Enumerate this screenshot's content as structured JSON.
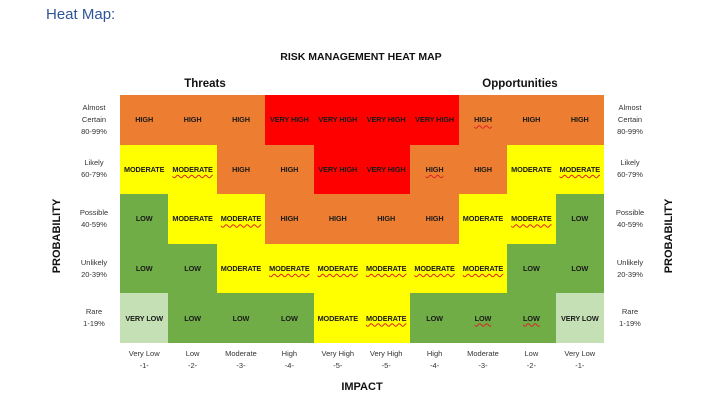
{
  "page": {
    "heading": "Heat Map:"
  },
  "colors": {
    "VERY HIGH": "#ff0000",
    "HIGH": "#ed7d31",
    "MODERATE": "#ffff00",
    "LOW": "#70ad47",
    "VERY LOW": "#c5e0b4"
  },
  "chart_data": {
    "type": "heatmap",
    "title": "RISK MANAGEMENT HEAT MAP",
    "groups": [
      "Threats",
      "Opportunities"
    ],
    "xlabel": "IMPACT",
    "ylabel": "PROBABILITY",
    "x_categories": [
      {
        "name": "Very Low",
        "score": "-1-"
      },
      {
        "name": "Low",
        "score": "-2-"
      },
      {
        "name": "Moderate",
        "score": "-3-"
      },
      {
        "name": "High",
        "score": "-4-"
      },
      {
        "name": "Very High",
        "score": "-5-"
      },
      {
        "name": "Very High",
        "score": "-5-"
      },
      {
        "name": "High",
        "score": "-4-"
      },
      {
        "name": "Moderate",
        "score": "-3-"
      },
      {
        "name": "Low",
        "score": "-2-"
      },
      {
        "name": "Very Low",
        "score": "-1-"
      }
    ],
    "y_categories": [
      {
        "name": "Almost Certain",
        "range": "80-99%"
      },
      {
        "name": "Likely",
        "range": "60-79%"
      },
      {
        "name": "Possible",
        "range": "40-59%"
      },
      {
        "name": "Unlikely",
        "range": "20-39%"
      },
      {
        "name": "Rare",
        "range": "1-19%"
      }
    ],
    "values": [
      [
        "HIGH",
        "HIGH",
        "HIGH",
        "VERY HIGH",
        "VERY HIGH",
        "VERY HIGH",
        "VERY HIGH",
        "HIGH",
        "HIGH",
        "HIGH"
      ],
      [
        "MODERATE",
        "MODERATE",
        "HIGH",
        "HIGH",
        "VERY HIGH",
        "VERY HIGH",
        "HIGH",
        "HIGH",
        "MODERATE",
        "MODERATE"
      ],
      [
        "LOW",
        "MODERATE",
        "MODERATE",
        "HIGH",
        "HIGH",
        "HIGH",
        "HIGH",
        "MODERATE",
        "MODERATE",
        "LOW"
      ],
      [
        "LOW",
        "LOW",
        "MODERATE",
        "MODERATE",
        "MODERATE",
        "MODERATE",
        "MODERATE",
        "MODERATE",
        "LOW",
        "LOW"
      ],
      [
        "VERY LOW",
        "LOW",
        "LOW",
        "LOW",
        "MODERATE",
        "MODERATE",
        "LOW",
        "LOW",
        "LOW",
        "VERY LOW"
      ]
    ],
    "spellcheck_underlined": [
      [
        0,
        7
      ],
      [
        1,
        1
      ],
      [
        1,
        6
      ],
      [
        1,
        9
      ],
      [
        2,
        2
      ],
      [
        2,
        8
      ],
      [
        3,
        3
      ],
      [
        3,
        4
      ],
      [
        3,
        5
      ],
      [
        3,
        6
      ],
      [
        3,
        7
      ],
      [
        4,
        5
      ],
      [
        4,
        7
      ],
      [
        4,
        8
      ]
    ]
  }
}
